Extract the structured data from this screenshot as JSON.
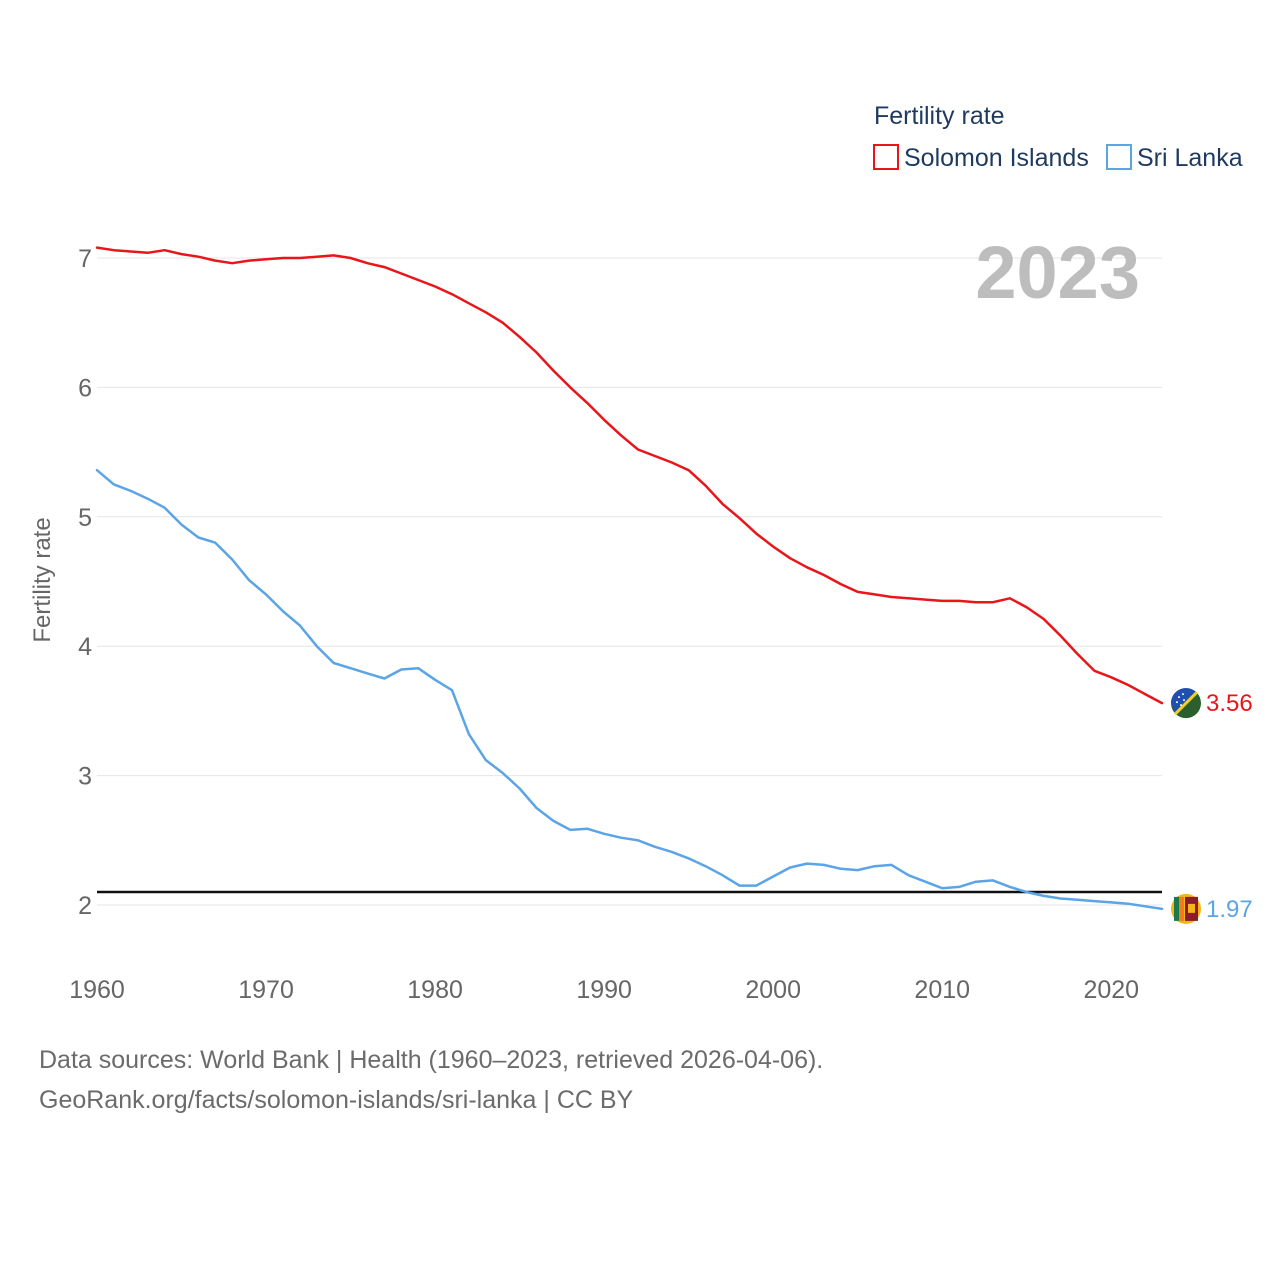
{
  "chart_data": {
    "type": "line",
    "ylabel": "Fertility rate",
    "legend_title": "Fertility rate",
    "legend_position": "top-right",
    "year_label": "2023",
    "xlim": [
      1960,
      2023
    ],
    "ylim": [
      1.6,
      7.4
    ],
    "x_ticks": [
      1960,
      1970,
      1980,
      1990,
      2000,
      2010,
      2020
    ],
    "y_ticks": [
      2,
      3,
      4,
      5,
      6,
      7
    ],
    "reference_line": 2.1,
    "x": [
      1960,
      1961,
      1962,
      1963,
      1964,
      1965,
      1966,
      1967,
      1968,
      1969,
      1970,
      1971,
      1972,
      1973,
      1974,
      1975,
      1976,
      1977,
      1978,
      1979,
      1980,
      1981,
      1982,
      1983,
      1984,
      1985,
      1986,
      1987,
      1988,
      1989,
      1990,
      1991,
      1992,
      1993,
      1994,
      1995,
      1996,
      1997,
      1998,
      1999,
      2000,
      2001,
      2002,
      2003,
      2004,
      2005,
      2006,
      2007,
      2008,
      2009,
      2010,
      2011,
      2012,
      2013,
      2014,
      2015,
      2016,
      2017,
      2018,
      2019,
      2020,
      2021,
      2022,
      2023
    ],
    "series": [
      {
        "name": "Solomon Islands",
        "color": "#e8161b",
        "end_label": "3.56",
        "values": [
          7.08,
          7.06,
          7.05,
          7.04,
          7.06,
          7.03,
          7.01,
          6.98,
          6.96,
          6.98,
          6.99,
          7.0,
          7.0,
          7.01,
          7.02,
          7.0,
          6.96,
          6.93,
          6.88,
          6.83,
          6.78,
          6.72,
          6.65,
          6.58,
          6.5,
          6.39,
          6.27,
          6.13,
          6.0,
          5.88,
          5.75,
          5.63,
          5.52,
          5.47,
          5.42,
          5.36,
          5.24,
          5.1,
          4.99,
          4.87,
          4.77,
          4.68,
          4.61,
          4.55,
          4.48,
          4.42,
          4.4,
          4.38,
          4.37,
          4.36,
          4.35,
          4.35,
          4.34,
          4.34,
          4.37,
          4.3,
          4.21,
          4.08,
          3.94,
          3.81,
          3.76,
          3.7,
          3.63,
          3.56
        ]
      },
      {
        "name": "Sri Lanka",
        "color": "#5ba4e5",
        "end_label": "1.97",
        "values": [
          5.36,
          5.25,
          5.2,
          5.14,
          5.07,
          4.94,
          4.84,
          4.8,
          4.67,
          4.51,
          4.4,
          4.27,
          4.16,
          4.0,
          3.87,
          3.83,
          3.79,
          3.75,
          3.82,
          3.83,
          3.74,
          3.66,
          3.32,
          3.12,
          3.02,
          2.9,
          2.75,
          2.65,
          2.58,
          2.59,
          2.55,
          2.52,
          2.5,
          2.45,
          2.41,
          2.36,
          2.3,
          2.23,
          2.15,
          2.15,
          2.22,
          2.29,
          2.32,
          2.31,
          2.28,
          2.27,
          2.3,
          2.31,
          2.23,
          2.18,
          2.13,
          2.14,
          2.18,
          2.19,
          2.14,
          2.1,
          2.07,
          2.05,
          2.04,
          2.03,
          2.02,
          2.01,
          1.99,
          1.97
        ]
      }
    ]
  },
  "footer": {
    "line1": "Data sources: World Bank | Health (1960–2023, retrieved 2026-04-06).",
    "line2": "GeoRank.org/facts/solomon-islands/sri-lanka | CC BY"
  }
}
